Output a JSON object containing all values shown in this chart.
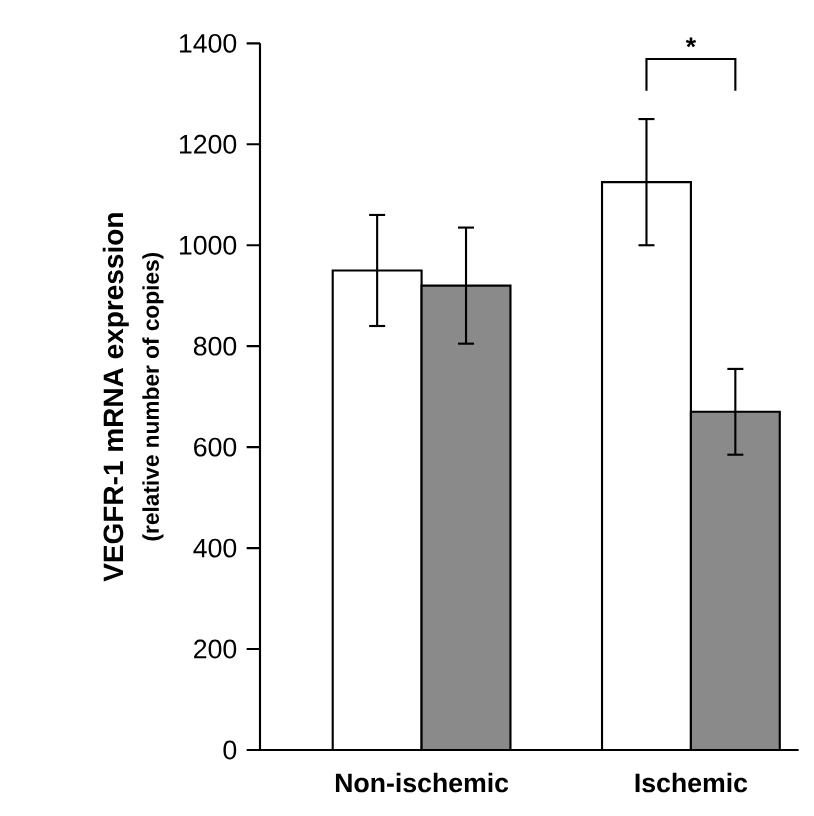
{
  "chart_data": {
    "type": "bar",
    "ylabel": "VEGFR-1 mRNA expression",
    "categories": [
      "Non-ischemic",
      "Ischemic"
    ],
    "series": [
      {
        "color": "#ffffff",
        "values": [
          950,
          1125
        ],
        "errors": [
          110,
          125
        ]
      },
      {
        "color": "#8a8a8a",
        "values": [
          920,
          670
        ],
        "errors": [
          115,
          85
        ]
      }
    ],
    "ylim": [
      0,
      1400
    ],
    "yticks": [
      0,
      200,
      400,
      600,
      800,
      1000,
      1200,
      1400
    ],
    "annotations": [
      "*",
      "(relative number of copies)"
    ]
  }
}
